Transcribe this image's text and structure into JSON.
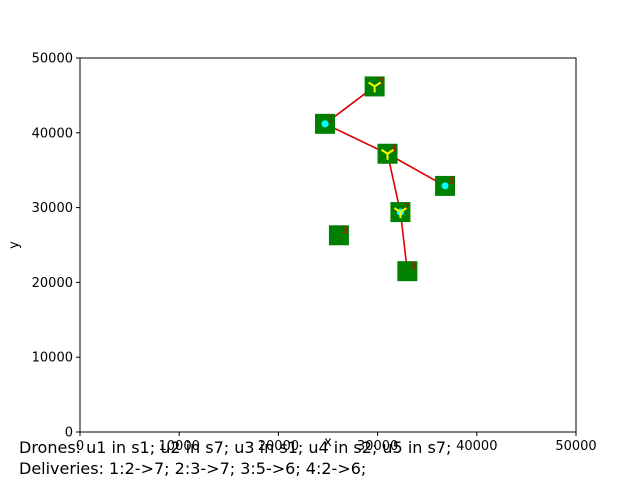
{
  "chart_data": {
    "type": "scatter",
    "title": "",
    "xlabel": "x",
    "ylabel": "y",
    "xlim": [
      0,
      50000
    ],
    "ylim": [
      0,
      50000
    ],
    "xticks": [
      "0",
      "10000",
      "20000",
      "30000",
      "40000",
      "50000"
    ],
    "yticks": [
      "0",
      "10000",
      "20000",
      "30000",
      "40000",
      "50000"
    ],
    "grid": false,
    "colors": {
      "station": "#008000",
      "edge": "#dd0000",
      "label": "#cc0000",
      "drone_dot": "#00ffff",
      "drone_tri": "#ffff00"
    },
    "stations": [
      {
        "id": "s1",
        "label": "1",
        "x": 24700,
        "y": 41200
      },
      {
        "id": "s2",
        "label": "2",
        "x": 29700,
        "y": 46200
      },
      {
        "id": "s3",
        "label": "3",
        "x": 36800,
        "y": 32900
      },
      {
        "id": "s4",
        "label": "4",
        "x": 31000,
        "y": 37200
      },
      {
        "id": "s5",
        "label": "5",
        "x": 26100,
        "y": 26300
      },
      {
        "id": "s6",
        "label": "6",
        "x": 33000,
        "y": 21500
      },
      {
        "id": "s7",
        "label": "7",
        "x": 32300,
        "y": 29400
      }
    ],
    "edges": [
      [
        "s1",
        "s2"
      ],
      [
        "s1",
        "s4"
      ],
      [
        "s4",
        "s3"
      ],
      [
        "s4",
        "s7"
      ],
      [
        "s7",
        "s6"
      ]
    ],
    "drones": [
      {
        "id": "u1",
        "station": "s1",
        "marker": "circle"
      },
      {
        "id": "u2",
        "station": "s7",
        "marker": "circle"
      },
      {
        "id": "u3",
        "station": "s1",
        "marker": "circle"
      },
      {
        "id": "u4",
        "station": "s2",
        "marker": "tri"
      },
      {
        "id": "u5",
        "station": "s7",
        "marker": "circle"
      },
      {
        "id": "u6",
        "station": "s3",
        "marker": "circle"
      },
      {
        "id": "u7",
        "station": "s4",
        "marker": "tri"
      },
      {
        "id": "u8",
        "station": "s7",
        "marker": "tri"
      }
    ]
  },
  "captions": {
    "drones": "Drones: u1 in s1; u2 in s7; u3 in s1; u4 in s2; u5 in s7;",
    "deliveries": "Deliveries: 1:2->7; 2:3->7; 3:5->6; 4:2->6;"
  }
}
